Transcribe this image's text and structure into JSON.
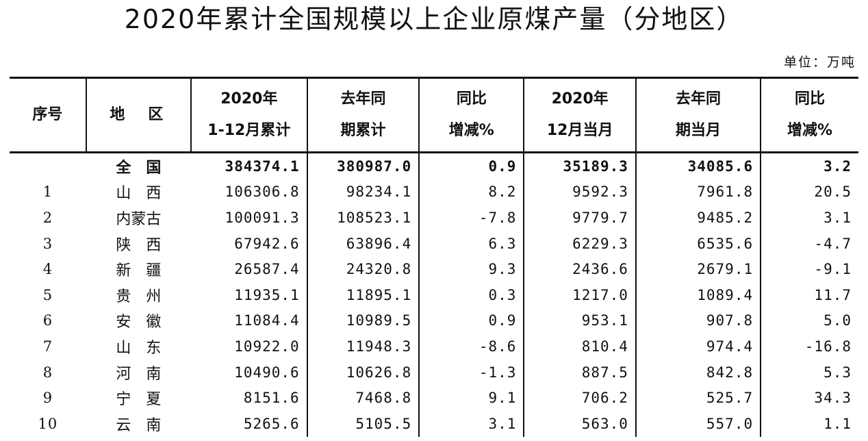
{
  "title": "2020年累计全国规模以上企业原煤产量（分地区）",
  "unit": "单位：万吨",
  "columns": [
    {
      "l1": "序号",
      "l2": ""
    },
    {
      "l1": "地区",
      "l2": ""
    },
    {
      "l1": "2020年",
      "l2": "1-12月累计"
    },
    {
      "l1": "去年同",
      "l2": "期累计"
    },
    {
      "l1": "同比",
      "l2": "增减%"
    },
    {
      "l1": "2020年",
      "l2": "12月当月"
    },
    {
      "l1": "去年同",
      "l2": "期当月"
    },
    {
      "l1": "同比",
      "l2": "增减%"
    }
  ],
  "rows": [
    {
      "seq": "",
      "area": "全国",
      "cum2020": "384374.1",
      "cumPrev": "380987.0",
      "cumPct": "0.9",
      "dec2020": "35189.3",
      "decPrev": "34085.6",
      "decPct": "3.2"
    },
    {
      "seq": "1",
      "area": "山西",
      "cum2020": "106306.8",
      "cumPrev": "98234.1",
      "cumPct": "8.2",
      "dec2020": "9592.3",
      "decPrev": "7961.8",
      "decPct": "20.5"
    },
    {
      "seq": "2",
      "area": "内蒙古",
      "cum2020": "100091.3",
      "cumPrev": "108523.1",
      "cumPct": "-7.8",
      "dec2020": "9779.7",
      "decPrev": "9485.2",
      "decPct": "3.1"
    },
    {
      "seq": "3",
      "area": "陕西",
      "cum2020": "67942.6",
      "cumPrev": "63896.4",
      "cumPct": "6.3",
      "dec2020": "6229.3",
      "decPrev": "6535.6",
      "decPct": "-4.7"
    },
    {
      "seq": "4",
      "area": "新疆",
      "cum2020": "26587.4",
      "cumPrev": "24320.8",
      "cumPct": "9.3",
      "dec2020": "2436.6",
      "decPrev": "2679.1",
      "decPct": "-9.1"
    },
    {
      "seq": "5",
      "area": "贵州",
      "cum2020": "11935.1",
      "cumPrev": "11895.1",
      "cumPct": "0.3",
      "dec2020": "1217.0",
      "decPrev": "1089.4",
      "decPct": "11.7"
    },
    {
      "seq": "6",
      "area": "安徽",
      "cum2020": "11084.4",
      "cumPrev": "10989.5",
      "cumPct": "0.9",
      "dec2020": "953.1",
      "decPrev": "907.8",
      "decPct": "5.0"
    },
    {
      "seq": "7",
      "area": "山东",
      "cum2020": "10922.0",
      "cumPrev": "11948.3",
      "cumPct": "-8.6",
      "dec2020": "810.4",
      "decPrev": "974.4",
      "decPct": "-16.8"
    },
    {
      "seq": "8",
      "area": "河南",
      "cum2020": "10490.6",
      "cumPrev": "10626.8",
      "cumPct": "-1.3",
      "dec2020": "887.5",
      "decPrev": "842.8",
      "decPct": "5.3"
    },
    {
      "seq": "9",
      "area": "宁夏",
      "cum2020": "8151.6",
      "cumPrev": "7468.8",
      "cumPct": "9.1",
      "dec2020": "706.2",
      "decPrev": "525.7",
      "decPct": "34.3"
    },
    {
      "seq": "10",
      "area": "云南",
      "cum2020": "5265.6",
      "cumPrev": "5105.5",
      "cumPct": "3.1",
      "dec2020": "563.0",
      "decPrev": "557.0",
      "decPct": "1.1"
    }
  ]
}
